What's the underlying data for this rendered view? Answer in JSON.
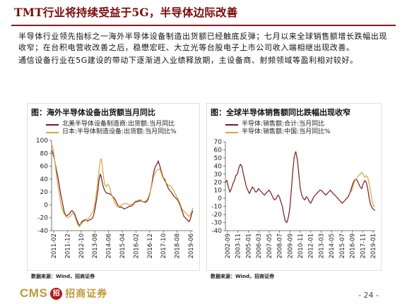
{
  "header": {
    "title": "TMT行业将持续受益于5G，半导体边际改善"
  },
  "body": {
    "paragraph_1": "半导体行业领先指标之一海外半导体设备制造出货额已经触底反弹；七月以来全球销售额增长跌幅出现收窄；在台积电营收改善之后，稳懋宏旺、大立光等台股电子上市公司收入端相继出现改善。",
    "paragraph_2": "通信设备行业在5G建设的带动下逐渐进入业绩释放期，主设备商、射频领域等盈利相对较好。"
  },
  "left_chart": {
    "title": "图：海外半导体设备出货额当月同比",
    "source": "数据来源：Wind，招商证券"
  },
  "right_chart": {
    "title": "图：全球半导体销售额同比跌幅出现收窄",
    "source": "数据来源：Wind，招商证券"
  },
  "footer": {
    "brand": "CMS",
    "brand_mark": "招",
    "brand_cn": "招商证券",
    "page_number": "- 24 -"
  },
  "colors": {
    "title": "#7a0a0a",
    "series_dark_red": "#7b1a1a",
    "series_gold": "#d4a640",
    "brand_gold": "#c09a3a",
    "brand_red": "#b01818"
  },
  "chart_data": [
    {
      "type": "line",
      "title": "图：海外半导体设备出货额当月同比",
      "xlabel": "",
      "ylabel": "",
      "ylim": [
        -40,
        100
      ],
      "yticks": [
        -40,
        -20,
        0,
        20,
        40,
        60,
        80,
        100
      ],
      "x_tick_labels": [
        "2011-02",
        "2011-09",
        "2012-04",
        "2012-11",
        "2013-06",
        "2014-01",
        "2014-08",
        "2015-03",
        "2015-10",
        "2016-05",
        "2016-12",
        "2017-07",
        "2018-02",
        "2018-09",
        "2019-04"
      ],
      "x_axis_labels": [
        "2011-02",
        "2011-12",
        "2012-10",
        "2013-08",
        "2014-06",
        "2015-04",
        "2016-02",
        "2016-12",
        "2017-10",
        "2018-08",
        "2019-06"
      ],
      "legend_position": "top-left",
      "series": [
        {
          "name": "北美半导体设备制造商:出货额:当月同比",
          "color": "#7b1a1a",
          "values": [
            85,
            80,
            73,
            62,
            52,
            42,
            30,
            18,
            8,
            -3,
            -12,
            -16,
            -17,
            -15,
            -14,
            -10,
            -9,
            -11,
            -14,
            -20,
            -25,
            -30,
            -32,
            -28,
            -25,
            -24,
            -23,
            -24,
            -25,
            -24,
            -23,
            -22,
            -20,
            -14,
            -4,
            8,
            22,
            40,
            48,
            40,
            30,
            24,
            20,
            18,
            18,
            17,
            16,
            14,
            12,
            10,
            6,
            2,
            -2,
            -4,
            -3,
            -4,
            -6,
            -6,
            -5,
            -4,
            -3,
            -2,
            -2,
            -1,
            2,
            4,
            5,
            5,
            6,
            6,
            6,
            5,
            4,
            4,
            5,
            8,
            14,
            22,
            32,
            45,
            55,
            60,
            63,
            68,
            62,
            55,
            48,
            42,
            40,
            34,
            30,
            25,
            22,
            20,
            17,
            14,
            12,
            10,
            8,
            4,
            0,
            -6,
            -12,
            -18,
            -20,
            -22,
            -24,
            -26,
            -22,
            -14,
            -9
          ]
        },
        {
          "name": "日本:半导体制造设备:出货额:当月同比%",
          "color": "#d4a640",
          "values": [
            95,
            88,
            76,
            60,
            44,
            30,
            18,
            4,
            -5,
            -10,
            -14,
            -17,
            -19,
            -20,
            -19,
            -17,
            -14,
            -12,
            -16,
            -22,
            -28,
            -32,
            -34,
            -30,
            -28,
            -26,
            -25,
            -24,
            -22,
            -21,
            -18,
            -15,
            -12,
            -8,
            2,
            16,
            32,
            50,
            66,
            72,
            58,
            40,
            30,
            28,
            32,
            30,
            24,
            16,
            12,
            6,
            2,
            -2,
            -3,
            -2,
            -1,
            0,
            1,
            2,
            2,
            2,
            1,
            0,
            0,
            1,
            2,
            4,
            6,
            6,
            7,
            8,
            8,
            6,
            5,
            5,
            6,
            8,
            12,
            18,
            24,
            32,
            42,
            48,
            52,
            54,
            55,
            56,
            50,
            44,
            40,
            36,
            34,
            32,
            30,
            30,
            28,
            25,
            22,
            18,
            14,
            10,
            6,
            2,
            -4,
            -8,
            -10,
            -12,
            -14,
            -16,
            -18,
            -15,
            -10,
            -5
          ]
        }
      ]
    },
    {
      "type": "line",
      "title": "图：全球半导体销售额同比跌幅出现收窄",
      "xlabel": "",
      "ylabel": "",
      "ylim": [
        -40,
        70
      ],
      "yticks": [
        -40,
        -30,
        -20,
        -10,
        0,
        10,
        20,
        30,
        40,
        50,
        60,
        70
      ],
      "x_axis_labels": [
        "2002-09",
        "2003-11",
        "2005-01",
        "2006-03",
        "2007-05",
        "2008-07",
        "2009-09",
        "2010-11",
        "2012-01",
        "2013-03",
        "2014-05",
        "2015-07",
        "2016-09",
        "2017-11",
        "2019-01"
      ],
      "legend_position": "top-left",
      "series": [
        {
          "name": "半导体:销售额:合计:当月同比",
          "color": "#7b1a1a",
          "values": [
            20,
            22,
            14,
            8,
            12,
            18,
            22,
            28,
            30,
            38,
            42,
            40,
            30,
            22,
            14,
            10,
            6,
            10,
            14,
            12,
            8,
            8,
            12,
            10,
            8,
            6,
            4,
            6,
            8,
            10,
            8,
            4,
            0,
            -2,
            0,
            4,
            2,
            -4,
            -10,
            -20,
            -28,
            -30,
            -24,
            -12,
            10,
            34,
            52,
            58,
            48,
            30,
            12,
            4,
            0,
            -2,
            2,
            0,
            -4,
            -6,
            -2,
            2,
            4,
            6,
            8,
            10,
            10,
            8,
            6,
            4,
            6,
            8,
            10,
            8,
            6,
            4,
            2,
            0,
            -2,
            -4,
            -6,
            -4,
            -2,
            0,
            2,
            6,
            12,
            18,
            22,
            24,
            22,
            18,
            14,
            12,
            18,
            22,
            20,
            12,
            0,
            -8,
            -12,
            -14,
            -15
          ]
        },
        {
          "name": "半导体:销售额:中国:当月同比%",
          "color": "#d4a640",
          "values": [
            null,
            null,
            null,
            null,
            null,
            null,
            null,
            null,
            null,
            null,
            null,
            null,
            null,
            null,
            null,
            null,
            null,
            null,
            null,
            null,
            null,
            null,
            null,
            null,
            null,
            null,
            null,
            null,
            null,
            null,
            null,
            null,
            null,
            null,
            null,
            null,
            null,
            null,
            null,
            null,
            null,
            null,
            null,
            null,
            null,
            null,
            null,
            null,
            null,
            null,
            null,
            null,
            null,
            null,
            null,
            null,
            null,
            null,
            null,
            null,
            null,
            null,
            null,
            null,
            null,
            null,
            null,
            null,
            null,
            null,
            null,
            null,
            null,
            null,
            null,
            null,
            null,
            null,
            null,
            null,
            null,
            null,
            null,
            null,
            8,
            14,
            20,
            24,
            26,
            28,
            30,
            32,
            30,
            26,
            28,
            26,
            18,
            8,
            -4,
            -10,
            -10
          ]
        }
      ]
    }
  ]
}
